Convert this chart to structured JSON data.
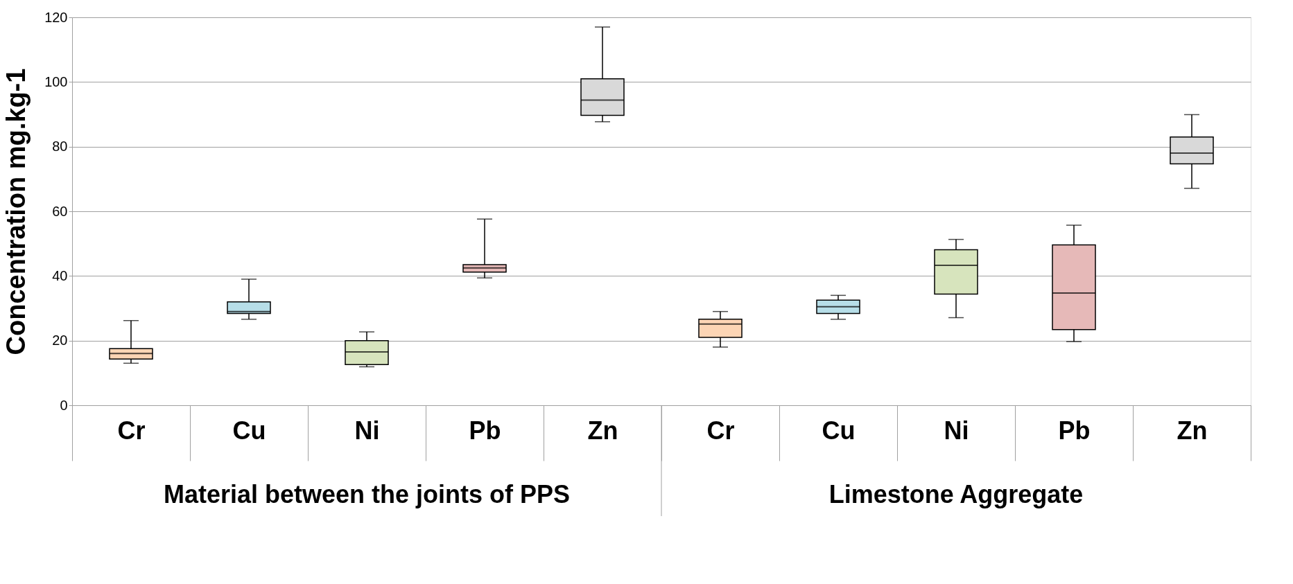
{
  "chart_data": {
    "type": "box",
    "ylabel": "Concentration mg.kg-1",
    "categories": [
      "Cr",
      "Cu",
      "Ni",
      "Pb",
      "Zn",
      "Cr",
      "Cu",
      "Ni",
      "Pb",
      "Zn"
    ],
    "colors": [
      "#fcd5b5",
      "#b7dee8",
      "#d7e4bd",
      "#e6b9b8",
      "#d9d9d9",
      "#fcd5b5",
      "#b7dee8",
      "#d7e4bd",
      "#e6b9b8",
      "#d9d9d9"
    ],
    "boxes": [
      {
        "low": 13,
        "q1": 14.3,
        "median": 16,
        "q3": 17.5,
        "high": 26.2
      },
      {
        "low": 26.6,
        "q1": 28.4,
        "median": 29,
        "q3": 32,
        "high": 39
      },
      {
        "low": 11.9,
        "q1": 12.6,
        "median": 16.5,
        "q3": 20,
        "high": 22.7
      },
      {
        "low": 39.4,
        "q1": 41.2,
        "median": 42.5,
        "q3": 43.5,
        "high": 57.6
      },
      {
        "low": 87.7,
        "q1": 89.7,
        "median": 94.4,
        "q3": 101,
        "high": 117
      },
      {
        "low": 18,
        "q1": 21,
        "median": 25.1,
        "q3": 26.6,
        "high": 29
      },
      {
        "low": 26.6,
        "q1": 28.4,
        "median": 30.5,
        "q3": 32.5,
        "high": 34
      },
      {
        "low": 27.1,
        "q1": 34.4,
        "median": 43.3,
        "q3": 48.1,
        "high": 51.3
      },
      {
        "low": 19.7,
        "q1": 23.4,
        "median": 34.7,
        "q3": 49.6,
        "high": 55.7
      },
      {
        "low": 67.1,
        "q1": 74.7,
        "median": 78,
        "q3": 83,
        "high": 89.9
      }
    ],
    "ylim": [
      0,
      120
    ],
    "yticks": [
      0,
      20,
      40,
      60,
      80,
      100,
      120
    ],
    "grid": "y",
    "annotations": [
      "Material between the joints of PPS",
      "Limestone Aggregate"
    ]
  }
}
